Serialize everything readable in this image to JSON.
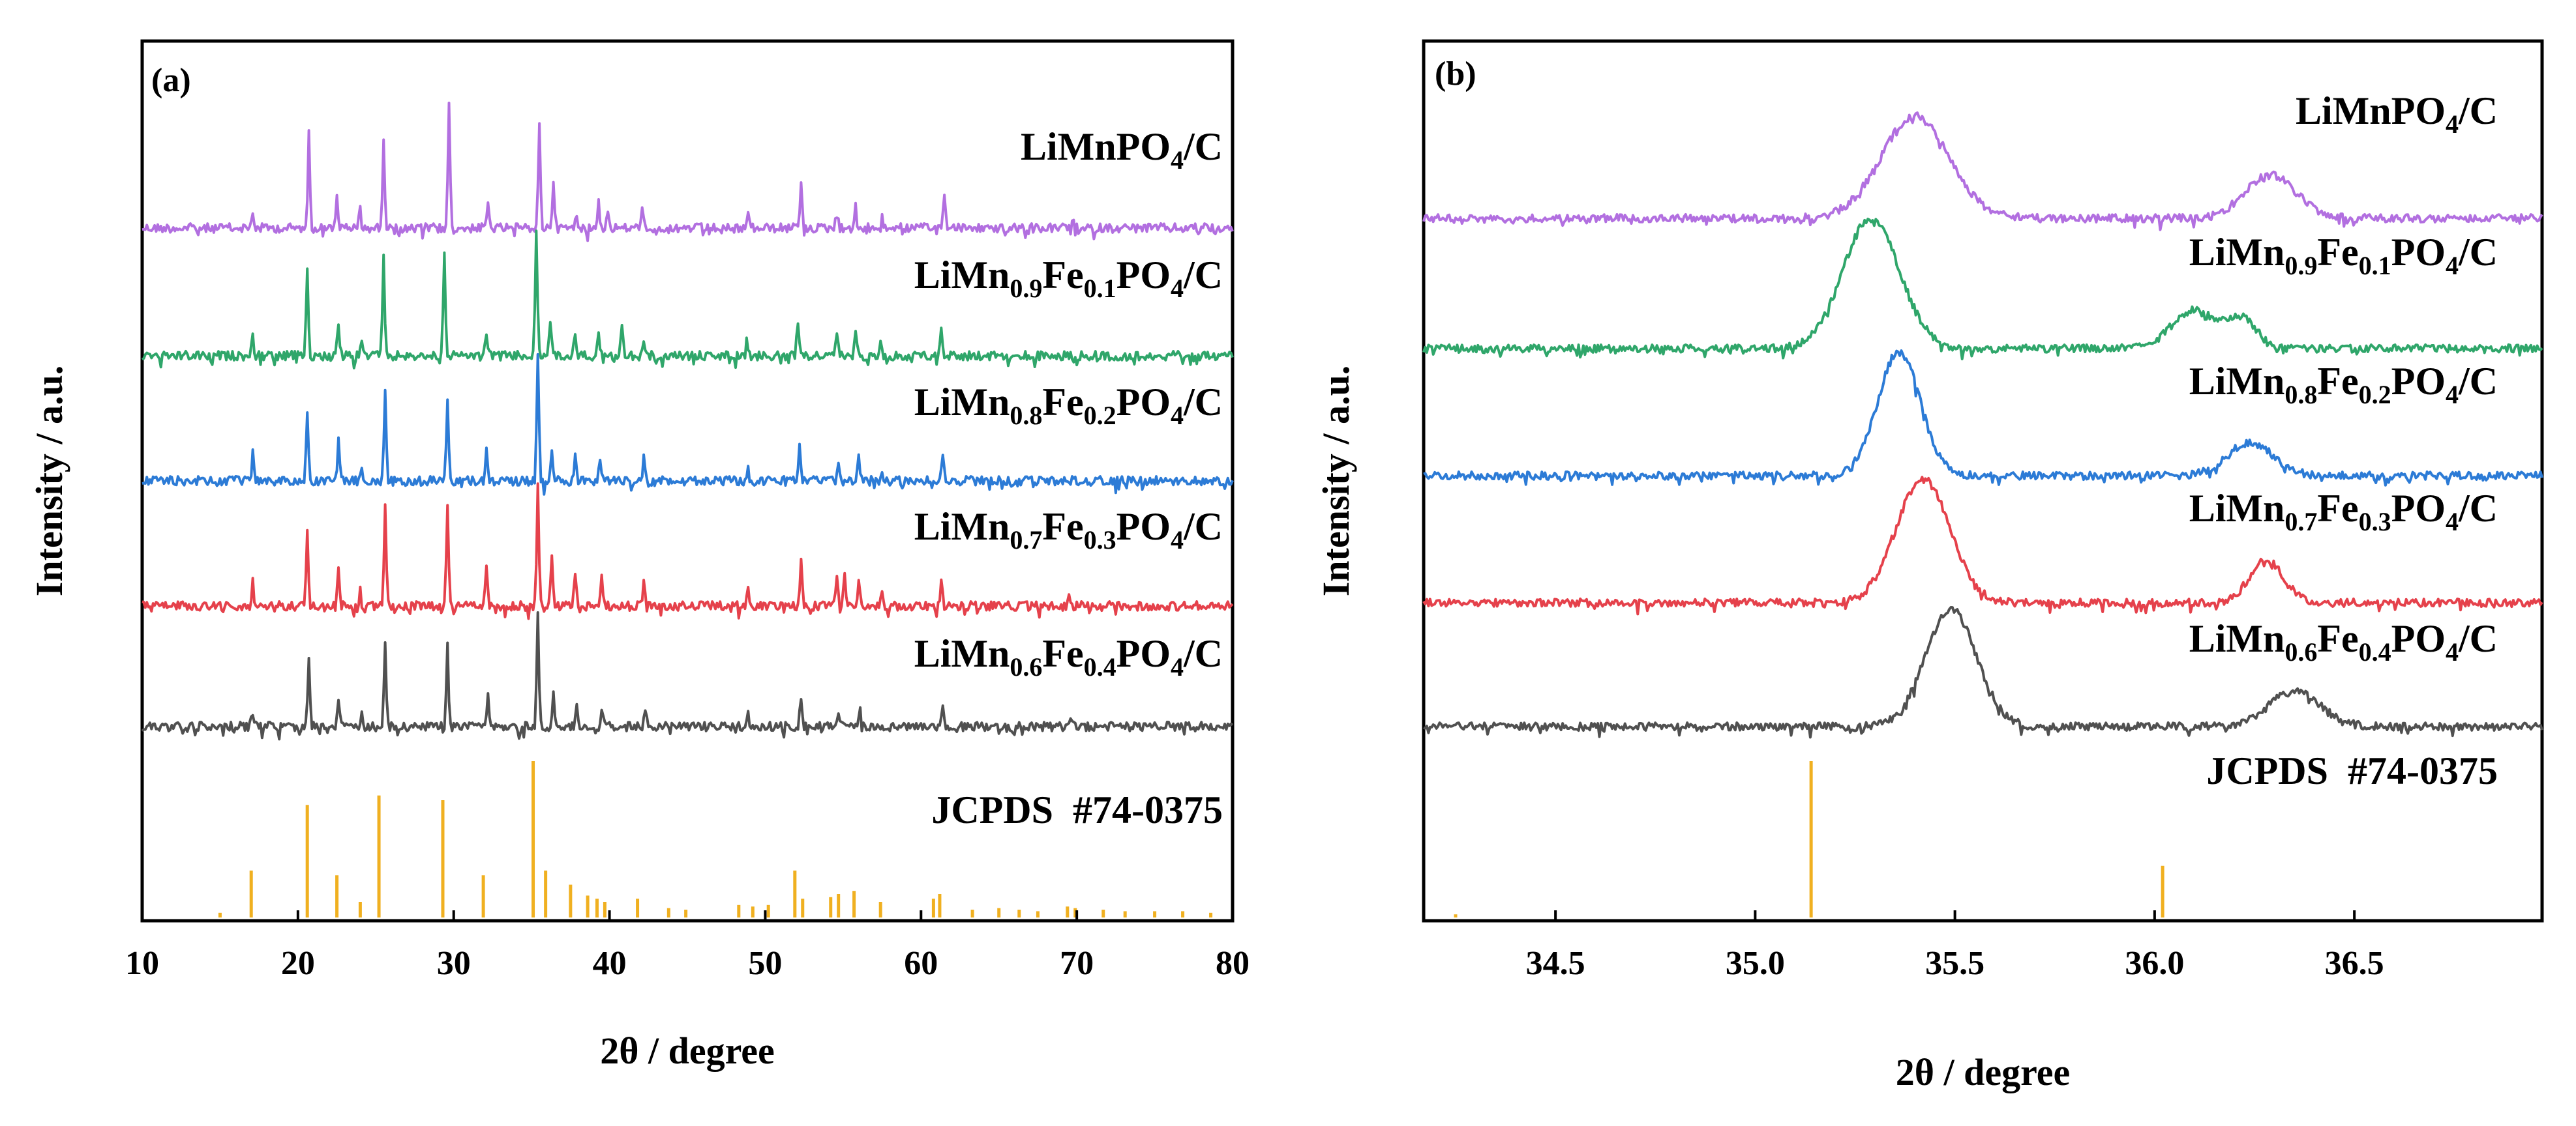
{
  "chart_data": [
    {
      "panel": "(a)",
      "type": "line",
      "subtype": "stacked XRD patterns with reference stick pattern",
      "xlabel": "2θ / degree",
      "ylabel": "Intensity / a.u.",
      "xlim": [
        10,
        80
      ],
      "xticks": [
        10,
        20,
        30,
        40,
        50,
        60,
        70,
        80
      ],
      "tick_labels": [
        "10",
        "20",
        "30",
        "40",
        "50",
        "60",
        "70",
        "80"
      ],
      "series": [
        {
          "name": "LiMnPO4/C",
          "label_parts": [
            [
              "LiMnPO",
              "n"
            ],
            [
              "4",
              "sub"
            ],
            [
              "/C",
              "n"
            ]
          ],
          "color": "#B26FE0",
          "peaks": [
            [
              17.1,
              0.12
            ],
            [
              20.7,
              0.78
            ],
            [
              22.5,
              0.28
            ],
            [
              24.0,
              0.18
            ],
            [
              25.5,
              0.72
            ],
            [
              29.7,
              1.0
            ],
            [
              32.2,
              0.2
            ],
            [
              35.5,
              0.85
            ],
            [
              36.4,
              0.4
            ],
            [
              37.9,
              0.12
            ],
            [
              39.3,
              0.22
            ],
            [
              39.9,
              0.14
            ],
            [
              42.1,
              0.2
            ],
            [
              48.9,
              0.12
            ],
            [
              52.3,
              0.38
            ],
            [
              54.6,
              0.15
            ],
            [
              55.8,
              0.2
            ],
            [
              57.5,
              0.1
            ],
            [
              61.5,
              0.3
            ],
            [
              69.7,
              0.08
            ]
          ]
        },
        {
          "name": "LiMn0.9Fe0.1PO4/C",
          "label_parts": [
            [
              "LiMn",
              "n"
            ],
            [
              "0.9",
              "sub"
            ],
            [
              "Fe",
              "n"
            ],
            [
              "0.1",
              "sub"
            ],
            [
              "PO",
              "n"
            ],
            [
              "4",
              "sub"
            ],
            [
              "/C",
              "n"
            ]
          ],
          "color": "#2FA66A",
          "peaks": [
            [
              17.1,
              0.15
            ],
            [
              20.6,
              0.72
            ],
            [
              22.6,
              0.28
            ],
            [
              24.1,
              0.12
            ],
            [
              25.5,
              0.8
            ],
            [
              29.4,
              0.82
            ],
            [
              32.1,
              0.25
            ],
            [
              35.3,
              1.0
            ],
            [
              36.2,
              0.3
            ],
            [
              37.8,
              0.2
            ],
            [
              39.3,
              0.2
            ],
            [
              40.8,
              0.24
            ],
            [
              42.2,
              0.15
            ],
            [
              48.8,
              0.12
            ],
            [
              52.1,
              0.35
            ],
            [
              54.6,
              0.18
            ],
            [
              55.8,
              0.2
            ],
            [
              57.4,
              0.12
            ],
            [
              61.3,
              0.25
            ],
            [
              66.2,
              0.08
            ]
          ]
        },
        {
          "name": "LiMn0.8Fe0.2PO4/C",
          "label_parts": [
            [
              "LiMn",
              "n"
            ],
            [
              "0.8",
              "sub"
            ],
            [
              "Fe",
              "n"
            ],
            [
              "0.2",
              "sub"
            ],
            [
              "PO",
              "n"
            ],
            [
              "4",
              "sub"
            ],
            [
              "/C",
              "n"
            ]
          ],
          "color": "#2C7BD6",
          "peaks": [
            [
              17.1,
              0.22
            ],
            [
              20.6,
              0.58
            ],
            [
              22.6,
              0.32
            ],
            [
              24.1,
              0.12
            ],
            [
              25.6,
              0.74
            ],
            [
              29.6,
              0.68
            ],
            [
              32.1,
              0.24
            ],
            [
              35.4,
              1.0
            ],
            [
              36.3,
              0.28
            ],
            [
              37.8,
              0.2
            ],
            [
              39.4,
              0.2
            ],
            [
              42.2,
              0.18
            ],
            [
              48.9,
              0.1
            ],
            [
              52.2,
              0.32
            ],
            [
              54.7,
              0.15
            ],
            [
              56.0,
              0.18
            ],
            [
              57.5,
              0.1
            ],
            [
              61.4,
              0.22
            ]
          ]
        },
        {
          "name": "LiMn0.7Fe0.3PO4/C",
          "label_parts": [
            [
              "LiMn",
              "n"
            ],
            [
              "0.7",
              "sub"
            ],
            [
              "Fe",
              "n"
            ],
            [
              "0.3",
              "sub"
            ],
            [
              "PO",
              "n"
            ],
            [
              "4",
              "sub"
            ],
            [
              "/C",
              "n"
            ]
          ],
          "color": "#E5414B",
          "peaks": [
            [
              17.1,
              0.2
            ],
            [
              20.6,
              0.62
            ],
            [
              22.6,
              0.28
            ],
            [
              24.0,
              0.12
            ],
            [
              25.6,
              0.82
            ],
            [
              29.6,
              0.82
            ],
            [
              32.1,
              0.35
            ],
            [
              35.4,
              1.0
            ],
            [
              36.3,
              0.4
            ],
            [
              37.8,
              0.25
            ],
            [
              39.5,
              0.25
            ],
            [
              42.2,
              0.2
            ],
            [
              48.9,
              0.12
            ],
            [
              52.3,
              0.38
            ],
            [
              54.6,
              0.25
            ],
            [
              55.1,
              0.3
            ],
            [
              56.0,
              0.22
            ],
            [
              57.5,
              0.15
            ],
            [
              61.3,
              0.22
            ],
            [
              69.5,
              0.1
            ]
          ]
        },
        {
          "name": "LiMn0.6Fe0.4PO4/C",
          "label_parts": [
            [
              "LiMn",
              "n"
            ],
            [
              "0.6",
              "sub"
            ],
            [
              "Fe",
              "n"
            ],
            [
              "0.4",
              "sub"
            ],
            [
              "PO",
              "n"
            ],
            [
              "4",
              "sub"
            ],
            [
              "/C",
              "n"
            ]
          ],
          "color": "#505050",
          "peaks": [
            [
              17.1,
              0.18
            ],
            [
              20.7,
              0.58
            ],
            [
              22.6,
              0.28
            ],
            [
              24.1,
              0.12
            ],
            [
              25.6,
              0.72
            ],
            [
              29.6,
              0.72
            ],
            [
              32.2,
              0.28
            ],
            [
              35.4,
              1.0
            ],
            [
              36.4,
              0.3
            ],
            [
              37.9,
              0.18
            ],
            [
              39.5,
              0.18
            ],
            [
              42.3,
              0.15
            ],
            [
              48.9,
              0.1
            ],
            [
              52.3,
              0.3
            ],
            [
              54.7,
              0.15
            ],
            [
              56.1,
              0.15
            ],
            [
              61.4,
              0.18
            ],
            [
              69.6,
              0.08
            ]
          ]
        }
      ],
      "reference": {
        "name": "JCPDS  #74-0375",
        "color": "#F0B020",
        "lines": [
          [
            15.0,
            0.03
          ],
          [
            17.0,
            0.3
          ],
          [
            20.6,
            0.72
          ],
          [
            22.5,
            0.27
          ],
          [
            24.0,
            0.1
          ],
          [
            25.2,
            0.78
          ],
          [
            29.3,
            0.75
          ],
          [
            31.9,
            0.27
          ],
          [
            35.1,
            1.0
          ],
          [
            35.9,
            0.3
          ],
          [
            37.5,
            0.21
          ],
          [
            38.6,
            0.14
          ],
          [
            39.2,
            0.12
          ],
          [
            39.7,
            0.1
          ],
          [
            41.8,
            0.12
          ],
          [
            43.8,
            0.06
          ],
          [
            44.9,
            0.05
          ],
          [
            48.3,
            0.08
          ],
          [
            49.2,
            0.07
          ],
          [
            50.2,
            0.08
          ],
          [
            51.9,
            0.3
          ],
          [
            52.4,
            0.12
          ],
          [
            54.2,
            0.13
          ],
          [
            54.7,
            0.15
          ],
          [
            55.7,
            0.17
          ],
          [
            57.4,
            0.1
          ],
          [
            60.8,
            0.12
          ],
          [
            61.2,
            0.15
          ],
          [
            63.3,
            0.05
          ],
          [
            65.0,
            0.06
          ],
          [
            66.3,
            0.05
          ],
          [
            67.5,
            0.04
          ],
          [
            69.4,
            0.07
          ],
          [
            69.9,
            0.06
          ],
          [
            71.7,
            0.05
          ],
          [
            73.1,
            0.04
          ],
          [
            75.0,
            0.04
          ],
          [
            76.8,
            0.04
          ],
          [
            78.6,
            0.03
          ]
        ]
      }
    },
    {
      "panel": "(b)",
      "type": "line",
      "subtype": "stacked XRD patterns, zoomed region",
      "xlabel": "2θ / degree",
      "ylabel": "Intensity / a.u.",
      "xlim": [
        34.17,
        36.97
      ],
      "xticks": [
        34.5,
        35.0,
        35.5,
        36.0,
        36.5
      ],
      "tick_labels": [
        "34.5",
        "35.0",
        "35.5",
        "36.0",
        "36.5"
      ],
      "series": [
        {
          "name": "LiMnPO4/C",
          "label_parts": [
            [
              "LiMnPO",
              "n"
            ],
            [
              "4",
              "sub"
            ],
            [
              "/C",
              "n"
            ]
          ],
          "color": "#B26FE0",
          "peaks": [
            [
              35.4,
              0.95,
              0.12
            ],
            [
              36.29,
              0.4,
              0.09
            ]
          ]
        },
        {
          "name": "LiMn0.9Fe0.1PO4/C",
          "label_parts": [
            [
              "LiMn",
              "n"
            ],
            [
              "0.9",
              "sub"
            ],
            [
              "Fe",
              "n"
            ],
            [
              "0.1",
              "sub"
            ],
            [
              "PO",
              "n"
            ],
            [
              "4",
              "sub"
            ],
            [
              "/C",
              "n"
            ]
          ],
          "color": "#2FA66A",
          "peaks": [
            [
              35.29,
              1.0,
              0.1
            ],
            [
              36.1,
              0.3,
              0.08
            ],
            [
              36.22,
              0.22,
              0.05
            ]
          ]
        },
        {
          "name": "LiMn0.8Fe0.2PO4/C",
          "label_parts": [
            [
              "LiMn",
              "n"
            ],
            [
              "0.8",
              "sub"
            ],
            [
              "Fe",
              "n"
            ],
            [
              "0.2",
              "sub"
            ],
            [
              "PO",
              "n"
            ],
            [
              "4",
              "sub"
            ],
            [
              "/C",
              "n"
            ]
          ],
          "color": "#2C7BD6",
          "peaks": [
            [
              35.36,
              1.0,
              0.075
            ],
            [
              36.24,
              0.27,
              0.08
            ]
          ]
        },
        {
          "name": "LiMn0.7Fe0.3PO4/C",
          "label_parts": [
            [
              "LiMn",
              "n"
            ],
            [
              "0.7",
              "sub"
            ],
            [
              "Fe",
              "n"
            ],
            [
              "0.3",
              "sub"
            ],
            [
              "PO",
              "n"
            ],
            [
              "4",
              "sub"
            ],
            [
              "/C",
              "n"
            ]
          ],
          "color": "#E5414B",
          "peaks": [
            [
              35.42,
              1.0,
              0.095
            ],
            [
              36.28,
              0.34,
              0.06
            ]
          ]
        },
        {
          "name": "LiMn0.6Fe0.4PO4/C",
          "label_parts": [
            [
              "LiMn",
              "n"
            ],
            [
              "0.6",
              "sub"
            ],
            [
              "Fe",
              "n"
            ],
            [
              "0.4",
              "sub"
            ],
            [
              "PO",
              "n"
            ],
            [
              "4",
              "sub"
            ],
            [
              "/C",
              "n"
            ]
          ],
          "color": "#505050",
          "peaks": [
            [
              35.49,
              1.0,
              0.09
            ],
            [
              36.35,
              0.3,
              0.09
            ]
          ]
        }
      ],
      "reference": {
        "name": "JCPDS  #74-0375",
        "color": "#F0B020",
        "lines": [
          [
            34.25,
            0.02
          ],
          [
            35.14,
            1.0
          ],
          [
            36.02,
            0.33
          ]
        ]
      }
    }
  ]
}
